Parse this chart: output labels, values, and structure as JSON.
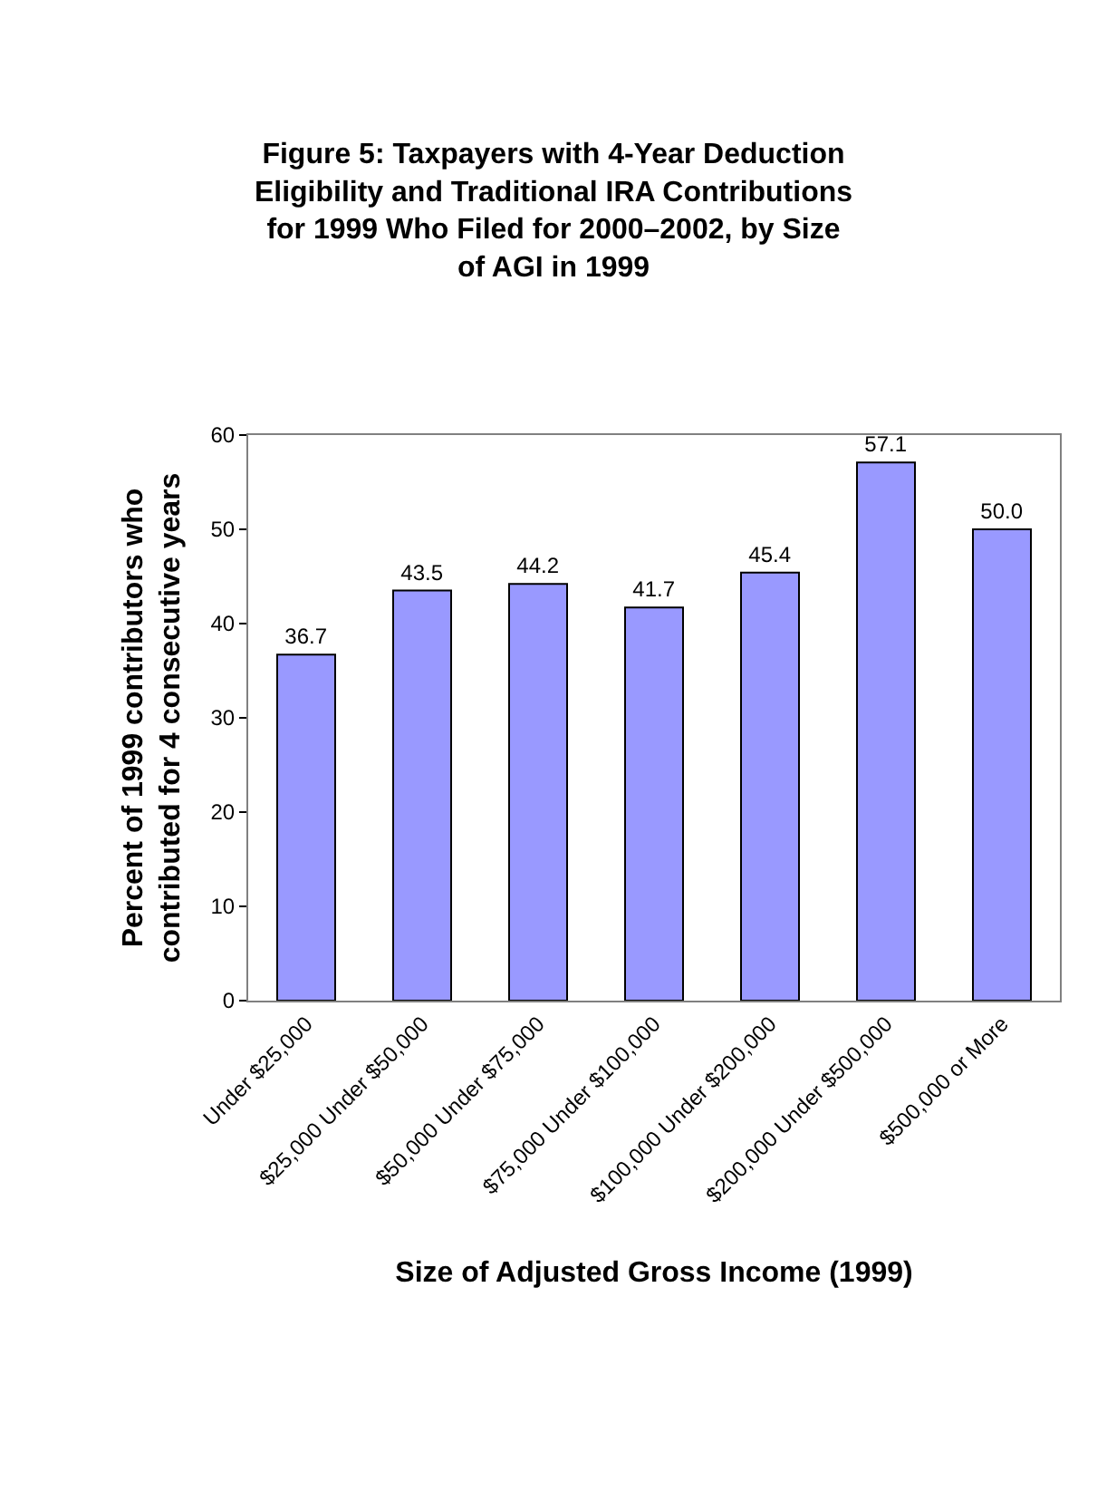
{
  "chart_data": {
    "type": "bar",
    "title": "Figure 5: Taxpayers with 4-Year Deduction\nEligibility and Traditional IRA Contributions\nfor 1999 Who Filed for 2000–2002, by Size\nof AGI in 1999",
    "xlabel": "Size of Adjusted Gross Income (1999)",
    "ylabel": "Percent of 1999 contributors who\ncontributed for 4 consecutive years",
    "categories": [
      "Under $25,000",
      "$25,000 Under $50,000",
      "$50,000 Under $75,000",
      "$75,000 Under $100,000",
      "$100,000 Under $200,000",
      "$200,000 Under $500,000",
      "$500,000 or More"
    ],
    "values": [
      36.7,
      43.5,
      44.2,
      41.7,
      45.4,
      57.1,
      50.0
    ],
    "value_labels": [
      "36.7",
      "43.5",
      "44.2",
      "41.7",
      "45.4",
      "57.1",
      "50.0"
    ],
    "color": "#9999ff",
    "ylim": [
      0,
      60
    ],
    "yticks": [
      0,
      10,
      20,
      30,
      40,
      50,
      60
    ],
    "grid": false,
    "legend": false
  }
}
